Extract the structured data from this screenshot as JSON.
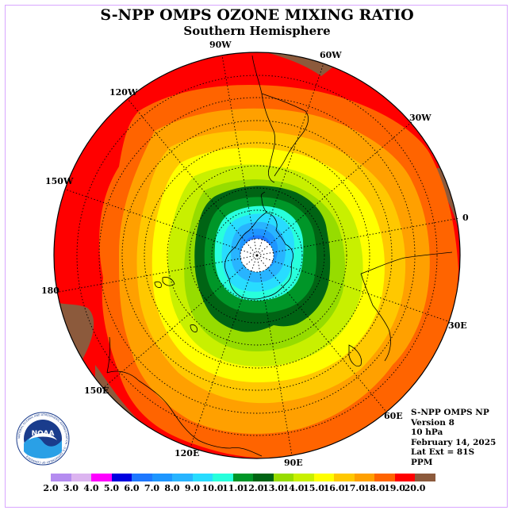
{
  "header": {
    "title": "S-NPP OMPS OZONE MIXING RATIO",
    "subtitle": "Southern Hemisphere"
  },
  "longitude_labels": [
    "90W",
    "60W",
    "30W",
    "0",
    "30E",
    "60E",
    "90E",
    "120E",
    "150E",
    "180",
    "150W",
    "120W"
  ],
  "info": {
    "line1": "S-NPP OMPS NP",
    "line2": "Version 8",
    "line3": "10 hPa",
    "line4": "February 14, 2025",
    "line5": "Lat Ext = 81S",
    "line6": "PPM"
  },
  "logo": {
    "icon": "noaa-logo-icon",
    "text": "NOAA",
    "ring_text": "NATIONAL OCEANIC AND ATMOSPHERIC ADMINISTRATION · U.S. DEPARTMENT OF COMMERCE"
  },
  "colorbar": {
    "ticks": [
      "2.0",
      "3.0",
      "4.0",
      "5.0",
      "6.0",
      "7.0",
      "8.0",
      "9.0",
      "10.0",
      "11.0",
      "12.0",
      "13.0",
      "14.0",
      "15.0",
      "16.0",
      "17.0",
      "18.0",
      "19.0",
      "20.0"
    ],
    "colors": [
      "#b48cf0",
      "#dcb4f0",
      "#ff00ff",
      "#0000e0",
      "#1e78ff",
      "#1e96ff",
      "#28b4ff",
      "#28dcff",
      "#28ffdc",
      "#009628",
      "#006414",
      "#96dc00",
      "#c8f000",
      "#ffff00",
      "#ffc800",
      "#ffa000",
      "#ff6400",
      "#ff0000",
      "#8c5a3c"
    ]
  }
}
